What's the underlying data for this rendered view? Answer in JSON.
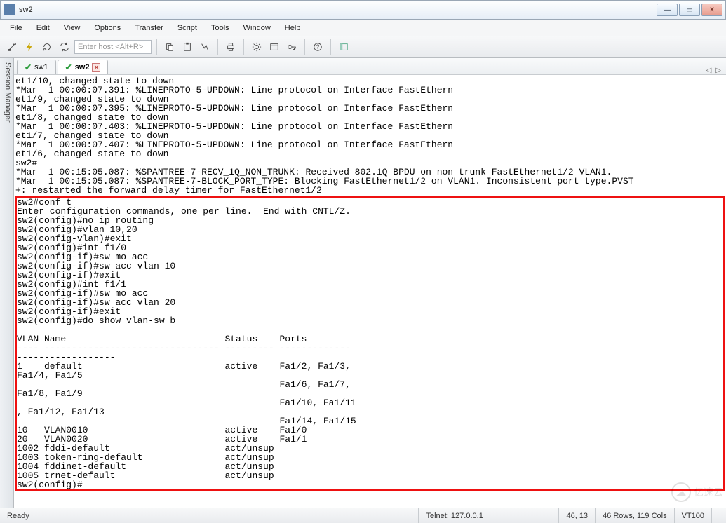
{
  "window": {
    "title": "sw2"
  },
  "menu": {
    "items": [
      "File",
      "Edit",
      "View",
      "Options",
      "Transfer",
      "Script",
      "Tools",
      "Window",
      "Help"
    ]
  },
  "toolbar": {
    "host_placeholder": "Enter host <Alt+R>",
    "icons": [
      "link-icon",
      "flash-icon",
      "refresh-icon",
      "reconnect-icon",
      "copy-icon",
      "paste-icon",
      "find-icon",
      "print-icon",
      "settings-icon",
      "properties-icon",
      "key-icon",
      "help-icon",
      "panel-icon"
    ]
  },
  "sidebar": {
    "label": "Session Manager"
  },
  "tabs": {
    "items": [
      {
        "label": "sw1",
        "active": false
      },
      {
        "label": "sw2",
        "active": true,
        "closable": true
      }
    ],
    "nav_left": "◁",
    "nav_right": "▷"
  },
  "terminal": {
    "top_lines": [
      "et1/10, changed state to down",
      "*Mar  1 00:00:07.391: %LINEPROTO-5-UPDOWN: Line protocol on Interface FastEthern",
      "et1/9, changed state to down",
      "*Mar  1 00:00:07.395: %LINEPROTO-5-UPDOWN: Line protocol on Interface FastEthern",
      "et1/8, changed state to down",
      "*Mar  1 00:00:07.403: %LINEPROTO-5-UPDOWN: Line protocol on Interface FastEthern",
      "et1/7, changed state to down",
      "*Mar  1 00:00:07.407: %LINEPROTO-5-UPDOWN: Line protocol on Interface FastEthern",
      "et1/6, changed state to down",
      "sw2#",
      "*Mar  1 00:15:05.087: %SPANTREE-7-RECV_1Q_NON_TRUNK: Received 802.1Q BPDU on non trunk FastEthernet1/2 VLAN1.",
      "*Mar  1 00:15:05.087: %SPANTREE-7-BLOCK_PORT_TYPE: Blocking FastEthernet1/2 on VLAN1. Inconsistent port type.PVST",
      "+: restarted the forward delay timer for FastEthernet1/2"
    ],
    "boxed_lines": [
      "sw2#conf t",
      "Enter configuration commands, one per line.  End with CNTL/Z.",
      "sw2(config)#no ip routing",
      "sw2(config)#vlan 10,20",
      "sw2(config-vlan)#exit",
      "sw2(config)#int f1/0",
      "sw2(config-if)#sw mo acc",
      "sw2(config-if)#sw acc vlan 10",
      "sw2(config-if)#exit",
      "sw2(config)#int f1/1",
      "sw2(config-if)#sw mo acc",
      "sw2(config-if)#sw acc vlan 20",
      "sw2(config-if)#exit",
      "sw2(config)#do show vlan-sw b",
      "",
      "VLAN Name                             Status    Ports",
      "---- -------------------------------- --------- -------------",
      "------------------",
      "1    default                          active    Fa1/2, Fa1/3,",
      "Fa1/4, Fa1/5",
      "                                                Fa1/6, Fa1/7,",
      "Fa1/8, Fa1/9",
      "                                                Fa1/10, Fa1/11",
      ", Fa1/12, Fa1/13",
      "                                                Fa1/14, Fa1/15",
      "10   VLAN0010                         active    Fa1/0",
      "20   VLAN0020                         active    Fa1/1",
      "1002 fddi-default                     act/unsup",
      "1003 token-ring-default               act/unsup",
      "1004 fddinet-default                  act/unsup",
      "1005 trnet-default                    act/unsup",
      "sw2(config)#"
    ]
  },
  "status": {
    "ready": "Ready",
    "conn": "Telnet: 127.0.0.1",
    "pos": "46, 13",
    "size": "46 Rows, 119 Cols",
    "term": "VT100"
  },
  "watermark": {
    "text": "亿速云"
  },
  "colors": {
    "titlebar_grad_top": "#fdfefe",
    "titlebar_grad_bot": "#e6eef7",
    "accent_border": "#9aa7b5",
    "menu_bg": "#f5f6f7",
    "toolbar_bg": "#e9ebee",
    "tab_active_bg": "#ffffff",
    "check_color": "#2e9e3e",
    "close_color": "#b5342c",
    "terminal_fg": "#000000",
    "terminal_bg": "#ffffff",
    "redbox": "#ee1111",
    "status_border": "#c8ccd0"
  }
}
